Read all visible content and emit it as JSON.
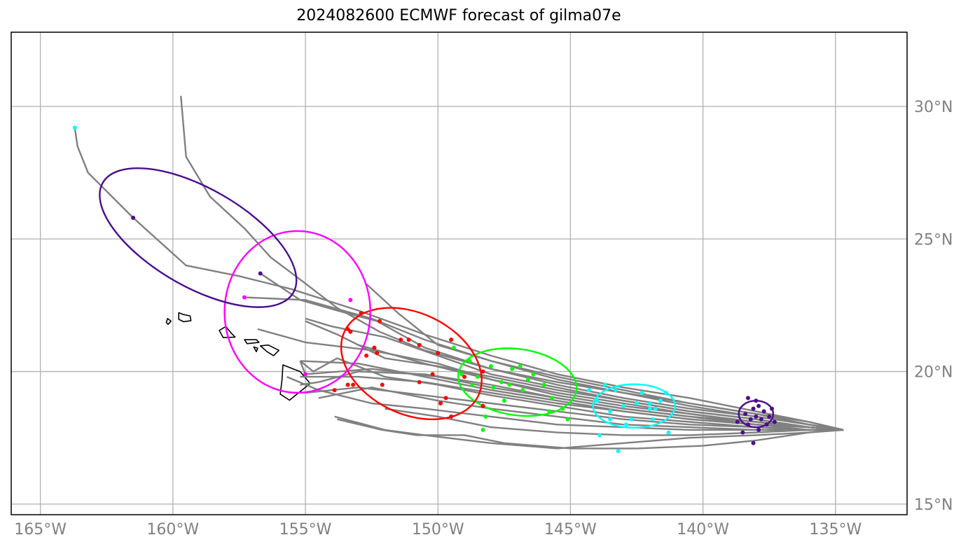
{
  "title": "2024082600 ECMWF forecast of gilma07e",
  "lon_ticks": [
    {
      "lon": -165,
      "label": "165°W"
    },
    {
      "lon": -160,
      "label": "160°W"
    },
    {
      "lon": -155,
      "label": "155°W"
    },
    {
      "lon": -150,
      "label": "150°W"
    },
    {
      "lon": -145,
      "label": "145°W"
    },
    {
      "lon": -140,
      "label": "140°W"
    },
    {
      "lon": -135,
      "label": "135°W"
    }
  ],
  "lat_ticks": [
    {
      "lat": 15,
      "label": "15°N"
    },
    {
      "lat": 20,
      "label": "20°N"
    },
    {
      "lat": 25,
      "label": "25°N"
    },
    {
      "lat": 30,
      "label": "30°N"
    }
  ],
  "extent": {
    "lon": [
      -166.1,
      -132.3
    ],
    "lat": [
      14.6,
      32.8
    ]
  },
  "colors": {
    "track": "#808080",
    "grid": "#b0b0b0",
    "tick_text": "#808080",
    "coast": "#000000",
    "day1": "#4b0f8c",
    "day2": "#00ffff",
    "day3": "#00ff00",
    "day4": "#ff0000",
    "day5": "#ff00ff",
    "day6": "#4b0f8c"
  },
  "tracks": [
    [
      [
        -134.7,
        17.8
      ],
      [
        -136,
        18.1
      ],
      [
        -138,
        18.4
      ],
      [
        -140.5,
        18.8
      ],
      [
        -143,
        19.2
      ],
      [
        -145.5,
        19.6
      ],
      [
        -148,
        20.1
      ],
      [
        -150.5,
        20.8
      ],
      [
        -152.2,
        21.5
      ],
      [
        -153.8,
        22.4
      ],
      [
        -155.1,
        23.4
      ],
      [
        -156.3,
        24.3
      ],
      [
        -157.3,
        25.4
      ],
      [
        -158.6,
        26.6
      ],
      [
        -159.5,
        28.1
      ],
      [
        -159.7,
        30.4
      ]
    ],
    [
      [
        -134.7,
        17.8
      ],
      [
        -136,
        18.1
      ],
      [
        -138,
        18.5
      ],
      [
        -140.5,
        19.0
      ],
      [
        -143,
        19.4
      ],
      [
        -145.5,
        19.9
      ],
      [
        -148,
        20.6
      ],
      [
        -150.5,
        21.4
      ],
      [
        -153,
        22.3
      ],
      [
        -155.5,
        23.1
      ],
      [
        -157.5,
        23.6
      ],
      [
        -159.5,
        24.0
      ],
      [
        -161.5,
        25.8
      ],
      [
        -163.2,
        27.5
      ],
      [
        -163.6,
        28.5
      ],
      [
        -163.7,
        29.2
      ]
    ],
    [
      [
        -134.7,
        17.8
      ],
      [
        -136,
        18.0
      ],
      [
        -138,
        18.3
      ],
      [
        -140.5,
        18.6
      ],
      [
        -143,
        19.0
      ],
      [
        -145.5,
        19.5
      ],
      [
        -148,
        20.1
      ],
      [
        -150.5,
        20.9
      ],
      [
        -152.3,
        21.9
      ],
      [
        -153.8,
        22.3
      ],
      [
        -155.2,
        22.7
      ],
      [
        -156.7,
        23.7
      ]
    ],
    [
      [
        -134.7,
        17.8
      ],
      [
        -136,
        18.0
      ],
      [
        -138,
        18.3
      ],
      [
        -140.5,
        18.7
      ],
      [
        -143,
        19.2
      ],
      [
        -145.5,
        19.7
      ],
      [
        -148,
        20.4
      ],
      [
        -150,
        21.0
      ],
      [
        -151.5,
        22.2
      ],
      [
        -152.7,
        23.3
      ]
    ],
    [
      [
        -134.7,
        17.8
      ],
      [
        -136,
        18.0
      ],
      [
        -138,
        18.4
      ],
      [
        -140.5,
        18.8
      ],
      [
        -143,
        19.3
      ],
      [
        -145.5,
        19.8
      ],
      [
        -148,
        20.4
      ],
      [
        -150.5,
        21.2
      ],
      [
        -152.5,
        22.0
      ],
      [
        -155,
        22.7
      ],
      [
        -157.3,
        22.8
      ]
    ],
    [
      [
        -134.7,
        17.8
      ],
      [
        -136,
        17.9
      ],
      [
        -138,
        18.1
      ],
      [
        -140.5,
        18.4
      ],
      [
        -143,
        18.7
      ],
      [
        -145.5,
        19.1
      ],
      [
        -148,
        19.7
      ],
      [
        -150,
        20.3
      ],
      [
        -152.5,
        20.8
      ],
      [
        -155,
        21.1
      ],
      [
        -156.8,
        21.6
      ]
    ],
    [
      [
        -134.7,
        17.8
      ],
      [
        -136,
        17.9
      ],
      [
        -138,
        18.2
      ],
      [
        -140.5,
        18.5
      ],
      [
        -143,
        18.9
      ],
      [
        -145.5,
        19.4
      ],
      [
        -148,
        19.9
      ],
      [
        -150,
        20.6
      ],
      [
        -152,
        21.3
      ],
      [
        -154,
        21.7
      ],
      [
        -155,
        22.0
      ]
    ],
    [
      [
        -134.7,
        17.8
      ],
      [
        -136,
        17.9
      ],
      [
        -138,
        18.1
      ],
      [
        -140.5,
        18.4
      ],
      [
        -143,
        18.8
      ],
      [
        -145.5,
        19.2
      ],
      [
        -148,
        19.7
      ],
      [
        -150.5,
        20.3
      ],
      [
        -153,
        21.0
      ]
    ],
    [
      [
        -134.7,
        17.8
      ],
      [
        -136,
        17.9
      ],
      [
        -138,
        18.0
      ],
      [
        -140.5,
        18.2
      ],
      [
        -143,
        18.5
      ],
      [
        -145.5,
        18.9
      ],
      [
        -148,
        19.3
      ],
      [
        -150.5,
        19.8
      ],
      [
        -153,
        20.3
      ],
      [
        -155.2,
        20.4
      ]
    ],
    [
      [
        -134.7,
        17.8
      ],
      [
        -136,
        17.9
      ],
      [
        -138,
        18.1
      ],
      [
        -140.5,
        18.3
      ],
      [
        -143,
        18.6
      ],
      [
        -145.5,
        19.0
      ],
      [
        -148,
        19.5
      ],
      [
        -150.5,
        19.9
      ],
      [
        -153,
        20.0
      ],
      [
        -154.5,
        19.6
      ],
      [
        -155.2,
        19.5
      ]
    ],
    [
      [
        -134.7,
        17.8
      ],
      [
        -136,
        17.8
      ],
      [
        -138,
        17.9
      ],
      [
        -140.5,
        18.0
      ],
      [
        -143,
        18.2
      ],
      [
        -145.5,
        18.5
      ],
      [
        -148,
        18.8
      ],
      [
        -150.5,
        19.1
      ],
      [
        -153,
        19.4
      ],
      [
        -155,
        19.2
      ]
    ],
    [
      [
        -134.7,
        17.8
      ],
      [
        -136,
        17.8
      ],
      [
        -138,
        17.8
      ],
      [
        -140.5,
        17.9
      ],
      [
        -143,
        18.0
      ],
      [
        -145.5,
        18.3
      ],
      [
        -148,
        18.6
      ],
      [
        -150,
        18.9
      ],
      [
        -152.5,
        19.4
      ],
      [
        -154.5,
        19.0
      ]
    ],
    [
      [
        -134.7,
        17.8
      ],
      [
        -136,
        17.8
      ],
      [
        -138,
        17.7
      ],
      [
        -140.5,
        17.6
      ],
      [
        -143,
        17.6
      ],
      [
        -145.5,
        17.7
      ],
      [
        -148,
        17.9
      ],
      [
        -150,
        18.3
      ],
      [
        -152,
        18.6
      ]
    ],
    [
      [
        -134.7,
        17.8
      ],
      [
        -136,
        17.7
      ],
      [
        -138,
        17.6
      ],
      [
        -140.5,
        17.5
      ],
      [
        -143,
        17.3
      ],
      [
        -145.5,
        17.1
      ],
      [
        -148,
        17.3
      ],
      [
        -150.5,
        17.6
      ],
      [
        -152,
        17.8
      ],
      [
        -153.9,
        18.3
      ]
    ],
    [
      [
        -134.7,
        17.8
      ],
      [
        -136,
        17.7
      ],
      [
        -138,
        17.4
      ],
      [
        -140,
        17.2
      ],
      [
        -142.5,
        17.1
      ],
      [
        -145,
        17.1
      ],
      [
        -147.5,
        17.3
      ],
      [
        -149,
        17.6
      ],
      [
        -150.8,
        17.6
      ],
      [
        -152.1,
        17.8
      ],
      [
        -153.8,
        18.2
      ]
    ],
    [
      [
        -134.7,
        17.8
      ],
      [
        -136,
        17.8
      ],
      [
        -138,
        17.8
      ],
      [
        -140.5,
        17.8
      ],
      [
        -143,
        17.9
      ],
      [
        -145.5,
        18.0
      ],
      [
        -148,
        18.3
      ],
      [
        -150.5,
        18.6
      ],
      [
        -152.5,
        18.8
      ],
      [
        -154.5,
        19.3
      ],
      [
        -155.7,
        19.8
      ]
    ],
    [
      [
        -134.7,
        17.8
      ],
      [
        -136,
        17.9
      ],
      [
        -138,
        18.2
      ],
      [
        -140.5,
        18.5
      ],
      [
        -143,
        18.9
      ],
      [
        -145.5,
        19.3
      ],
      [
        -148,
        19.8
      ],
      [
        -150,
        20.2
      ],
      [
        -152,
        20.5
      ],
      [
        -153.8,
        21.4
      ],
      [
        -155,
        21.9
      ]
    ],
    [
      [
        -134.7,
        17.8
      ],
      [
        -136,
        17.9
      ],
      [
        -138,
        18.0
      ],
      [
        -140.5,
        18.3
      ],
      [
        -143,
        18.6
      ],
      [
        -145.5,
        19.0
      ],
      [
        -148,
        19.4
      ],
      [
        -150,
        19.8
      ],
      [
        -152.5,
        20.1
      ],
      [
        -155,
        19.9
      ],
      [
        -155.2,
        20.4
      ]
    ],
    [
      [
        -134.7,
        17.8
      ],
      [
        -136,
        17.8
      ],
      [
        -138,
        17.9
      ],
      [
        -140.5,
        18.1
      ],
      [
        -143,
        18.3
      ],
      [
        -145.5,
        18.7
      ],
      [
        -148,
        19.1
      ],
      [
        -150,
        19.5
      ],
      [
        -152,
        19.8
      ],
      [
        -153.8,
        20.5
      ],
      [
        -154.7,
        20.0
      ],
      [
        -155.2,
        20.4
      ]
    ],
    [
      [
        -134.7,
        17.8
      ],
      [
        -136,
        17.8
      ],
      [
        -138,
        18.0
      ],
      [
        -140.5,
        18.2
      ],
      [
        -143,
        18.5
      ],
      [
        -145.5,
        18.8
      ],
      [
        -148,
        19.2
      ],
      [
        -150.5,
        19.6
      ],
      [
        -153,
        19.8
      ],
      [
        -155.2,
        19.8
      ]
    ]
  ],
  "day_points": [
    {
      "key": "day1",
      "points": [
        [
          -138.3,
          18.0
        ],
        [
          -138.0,
          18.3
        ],
        [
          -137.7,
          18.5
        ],
        [
          -137.5,
          18.3
        ],
        [
          -138.1,
          18.6
        ],
        [
          -138.4,
          18.4
        ],
        [
          -137.8,
          18.2
        ],
        [
          -138.7,
          18.1
        ],
        [
          -137.9,
          18.7
        ],
        [
          -137.6,
          18.0
        ],
        [
          -138.2,
          18.2
        ],
        [
          -137.4,
          18.6
        ],
        [
          -138.5,
          17.7
        ],
        [
          -138.0,
          18.9
        ],
        [
          -138.3,
          19.0
        ],
        [
          -137.9,
          17.8
        ],
        [
          -138.1,
          17.3
        ],
        [
          -137.3,
          18.1
        ]
      ]
    },
    {
      "key": "day2",
      "points": [
        [
          -144.0,
          18.9
        ],
        [
          -143.5,
          18.5
        ],
        [
          -143.0,
          18.7
        ],
        [
          -142.5,
          18.8
        ],
        [
          -142.0,
          18.6
        ],
        [
          -141.6,
          18.9
        ],
        [
          -141.9,
          18.2
        ],
        [
          -142.7,
          18.2
        ],
        [
          -143.3,
          19.3
        ],
        [
          -142.3,
          19.2
        ],
        [
          -141.4,
          19.2
        ],
        [
          -143.7,
          19.5
        ],
        [
          -144.3,
          19.3
        ],
        [
          -142.9,
          18.0
        ],
        [
          -141.8,
          18.6
        ],
        [
          -141.3,
          17.7
        ],
        [
          -143.9,
          17.6
        ],
        [
          -143.2,
          17.0
        ],
        [
          -142.0,
          18.8
        ],
        [
          -143.5,
          18.2
        ]
      ]
    },
    {
      "key": "day3",
      "points": [
        [
          -149.4,
          20.9
        ],
        [
          -148.8,
          20.4
        ],
        [
          -148.5,
          19.8
        ],
        [
          -148.0,
          20.2
        ],
        [
          -147.6,
          19.6
        ],
        [
          -147.2,
          20.1
        ],
        [
          -146.8,
          19.3
        ],
        [
          -146.4,
          19.9
        ],
        [
          -146.0,
          19.5
        ],
        [
          -145.7,
          19.0
        ],
        [
          -145.3,
          18.6
        ],
        [
          -147.5,
          18.9
        ],
        [
          -148.2,
          18.3
        ],
        [
          -148.3,
          17.8
        ],
        [
          -145.1,
          18.2
        ],
        [
          -146.6,
          19.7
        ],
        [
          -147.9,
          19.4
        ],
        [
          -148.7,
          19.5
        ],
        [
          -149.1,
          19.9
        ],
        [
          -146.9,
          20.2
        ],
        [
          -147.3,
          19.5
        ],
        [
          -145.8,
          18.5
        ]
      ]
    },
    {
      "key": "day4",
      "points": [
        [
          -150.0,
          20.7
        ],
        [
          -149.5,
          21.2
        ],
        [
          -149.0,
          19.8
        ],
        [
          -148.3,
          20.0
        ],
        [
          -148.3,
          18.7
        ],
        [
          -150.2,
          19.9
        ],
        [
          -150.7,
          19.6
        ],
        [
          -151.4,
          21.2
        ],
        [
          -152.2,
          21.9
        ],
        [
          -152.9,
          22.2
        ],
        [
          -153.4,
          21.6
        ],
        [
          -153.3,
          21.5
        ],
        [
          -152.4,
          20.9
        ],
        [
          -152.3,
          20.7
        ],
        [
          -152.7,
          20.6
        ],
        [
          -152.1,
          19.5
        ],
        [
          -153.2,
          19.5
        ],
        [
          -153.9,
          19.3
        ],
        [
          -153.4,
          19.5
        ],
        [
          -149.7,
          19.0
        ],
        [
          -149.9,
          18.8
        ],
        [
          -149.5,
          18.3
        ],
        [
          -151.1,
          21.2
        ],
        [
          -150.7,
          21.0
        ]
      ]
    },
    {
      "key": "day5",
      "points": [
        [
          -155.0,
          19.9
        ],
        [
          -157.3,
          22.8
        ],
        [
          -153.3,
          22.7
        ]
      ]
    },
    {
      "key": "day6",
      "points": [
        [
          -156.7,
          23.7
        ],
        [
          -161.5,
          25.8
        ]
      ]
    },
    {
      "key": "day2",
      "points": [
        [
          -163.7,
          29.2
        ]
      ]
    }
  ],
  "ellipses": [
    {
      "key": "day1",
      "lon": -138.0,
      "lat": 18.4,
      "rx_deg": 0.65,
      "ry_deg": 0.5,
      "angle": 0
    },
    {
      "key": "day2",
      "lon": -142.6,
      "lat": 18.7,
      "rx_deg": 1.55,
      "ry_deg": 0.82,
      "angle": 0
    },
    {
      "key": "day3",
      "lon": -147.0,
      "lat": 19.6,
      "rx_deg": 2.25,
      "ry_deg": 1.25,
      "angle": 8
    },
    {
      "key": "day4",
      "lon": -151.0,
      "lat": 20.3,
      "rx_deg": 2.8,
      "ry_deg": 1.9,
      "angle": 26
    },
    {
      "key": "day5",
      "lon": -155.3,
      "lat": 22.25,
      "rx_deg": 2.75,
      "ry_deg": 3.05,
      "angle": 0
    },
    {
      "key": "day6",
      "lon": -159.05,
      "lat": 25.05,
      "rx_deg": 4.15,
      "ry_deg": 1.85,
      "angle": 30
    }
  ],
  "islands": [
    [
      [
        -159.78,
        22.22
      ],
      [
        -159.6,
        22.15
      ],
      [
        -159.35,
        22.1
      ],
      [
        -159.32,
        21.92
      ],
      [
        -159.6,
        21.88
      ],
      [
        -159.78,
        21.97
      ]
    ],
    [
      [
        -160.2,
        22.0
      ],
      [
        -160.07,
        21.9
      ],
      [
        -160.18,
        21.78
      ],
      [
        -160.25,
        21.85
      ]
    ],
    [
      [
        -158.25,
        21.55
      ],
      [
        -158.0,
        21.7
      ],
      [
        -157.8,
        21.45
      ],
      [
        -157.65,
        21.3
      ],
      [
        -158.1,
        21.28
      ]
    ],
    [
      [
        -157.3,
        21.2
      ],
      [
        -156.85,
        21.2
      ],
      [
        -156.75,
        21.1
      ],
      [
        -157.2,
        21.05
      ]
    ],
    [
      [
        -156.95,
        20.93
      ],
      [
        -156.8,
        20.88
      ],
      [
        -156.85,
        20.75
      ]
    ],
    [
      [
        -156.7,
        20.97
      ],
      [
        -156.4,
        21.0
      ],
      [
        -156.0,
        20.8
      ],
      [
        -156.2,
        20.6
      ],
      [
        -156.45,
        20.75
      ]
    ],
    [
      [
        -155.85,
        20.25
      ],
      [
        -155.2,
        20.0
      ],
      [
        -154.82,
        19.55
      ],
      [
        -155.6,
        18.92
      ],
      [
        -155.95,
        19.15
      ],
      [
        -155.88,
        19.7
      ]
    ]
  ]
}
